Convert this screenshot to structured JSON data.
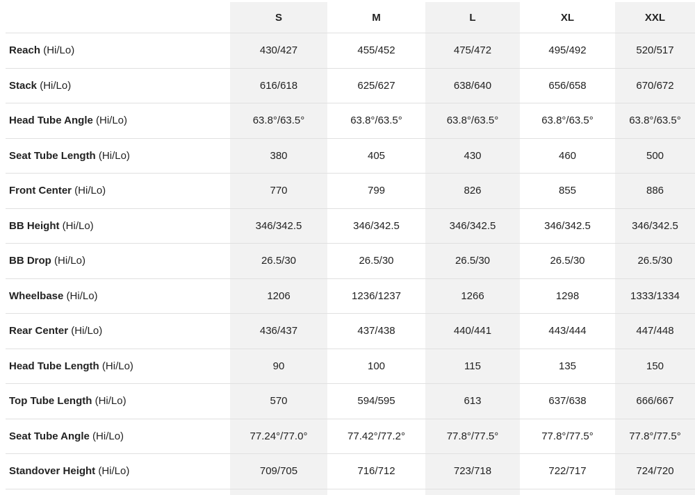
{
  "colors": {
    "shaded_column": "#f2f2f2",
    "divider": "#e0e0e0",
    "text": "#222222"
  },
  "sizes": [
    "S",
    "M",
    "L",
    "XL",
    "XXL"
  ],
  "rows": [
    {
      "name": "Reach",
      "suffix": "(Hi/Lo)",
      "values": [
        "430/427",
        "455/452",
        "475/472",
        "495/492",
        "520/517"
      ]
    },
    {
      "name": "Stack",
      "suffix": "(Hi/Lo)",
      "values": [
        "616/618",
        "625/627",
        "638/640",
        "656/658",
        "670/672"
      ]
    },
    {
      "name": "Head Tube Angle",
      "suffix": "(Hi/Lo)",
      "values": [
        "63.8°/63.5°",
        "63.8°/63.5°",
        "63.8°/63.5°",
        "63.8°/63.5°",
        "63.8°/63.5°"
      ]
    },
    {
      "name": "Seat Tube Length",
      "suffix": "(Hi/Lo)",
      "values": [
        "380",
        "405",
        "430",
        "460",
        "500"
      ]
    },
    {
      "name": "Front Center",
      "suffix": "(Hi/Lo)",
      "values": [
        "770",
        "799",
        "826",
        "855",
        "886"
      ]
    },
    {
      "name": "BB Height",
      "suffix": "(Hi/Lo)",
      "values": [
        "346/342.5",
        "346/342.5",
        "346/342.5",
        "346/342.5",
        "346/342.5"
      ]
    },
    {
      "name": "BB Drop",
      "suffix": "(Hi/Lo)",
      "values": [
        "26.5/30",
        "26.5/30",
        "26.5/30",
        "26.5/30",
        "26.5/30"
      ]
    },
    {
      "name": "Wheelbase",
      "suffix": "(Hi/Lo)",
      "values": [
        "1206",
        "1236/1237",
        "1266",
        "1298",
        "1333/1334"
      ]
    },
    {
      "name": "Rear Center",
      "suffix": "(Hi/Lo)",
      "values": [
        "436/437",
        "437/438",
        "440/441",
        "443/444",
        "447/448"
      ]
    },
    {
      "name": "Head Tube Length",
      "suffix": "(Hi/Lo)",
      "values": [
        "90",
        "100",
        "115",
        "135",
        "150"
      ]
    },
    {
      "name": "Top Tube Length",
      "suffix": "(Hi/Lo)",
      "values": [
        "570",
        "594/595",
        "613",
        "637/638",
        "666/667"
      ]
    },
    {
      "name": "Seat Tube Angle",
      "suffix": "(Hi/Lo)",
      "values": [
        "77.24°/77.0°",
        "77.42°/77.2°",
        "77.8°/77.5°",
        "77.8°/77.5°",
        "77.8°/77.5°"
      ]
    },
    {
      "name": "Standover Height",
      "suffix": "(Hi/Lo)",
      "values": [
        "709/705",
        "716/712",
        "723/718",
        "722/717",
        "724/720"
      ]
    }
  ]
}
